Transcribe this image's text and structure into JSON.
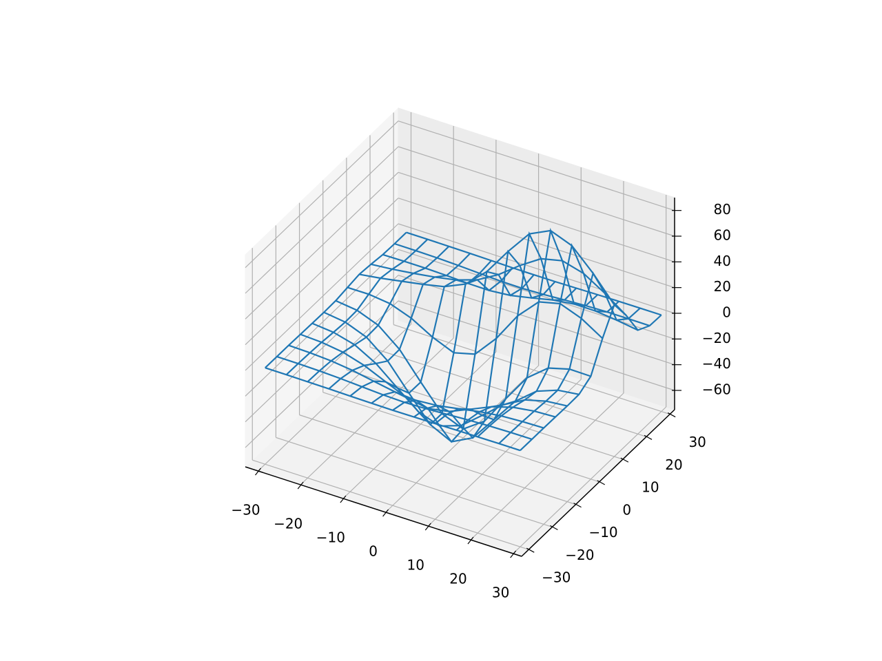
{
  "chart_data": {
    "type": "wireframe",
    "color": "#1f77b4",
    "x": [
      -30,
      -25,
      -20,
      -15,
      -10,
      -5,
      0,
      5,
      10,
      15,
      20,
      25,
      30
    ],
    "y": [
      -30,
      -25,
      -20,
      -15,
      -10,
      -5,
      0,
      5,
      10,
      15,
      20,
      25,
      30
    ],
    "z": [
      [
        -0.01,
        -0.04,
        -0.12,
        -0.29,
        -0.54,
        -0.78,
        -0.88,
        -0.78,
        -0.54,
        -0.29,
        -0.12,
        -0.04,
        -0.01
      ],
      [
        -0.04,
        -0.15,
        -0.47,
        -1.13,
        -2.12,
        -3.08,
        -3.49,
        -3.08,
        -2.12,
        -1.13,
        -0.47,
        -0.15,
        -0.04
      ],
      [
        -0.12,
        -0.47,
        -1.46,
        -3.5,
        -6.53,
        -9.5,
        -10.77,
        -9.5,
        -6.53,
        -3.5,
        -1.46,
        -0.47,
        -0.12
      ],
      [
        -0.29,
        -1.13,
        -3.5,
        -8.39,
        -15.67,
        -22.8,
        -25.84,
        -22.8,
        -15.67,
        -8.39,
        -3.5,
        -1.13,
        -0.29
      ],
      [
        -0.53,
        -2.11,
        -6.53,
        -15.66,
        -29.26,
        -42.57,
        -48.23,
        -42.56,
        -29.23,
        -15.64,
        -6.5,
        -2.1,
        -0.52
      ],
      [
        -0.75,
        -3.0,
        -9.34,
        -22.51,
        -42.11,
        -61.27,
        -69.29,
        -60.87,
        -41.41,
        -21.69,
        -8.56,
        -2.37,
        -0.3
      ],
      [
        -0.47,
        -2.55,
        -8.83,
        -22.26,
        -42.36,
        -61.52,
        -68.09,
        -56.65,
        -33.9,
        -12.26,
        0.72,
        5.22,
        5.02
      ],
      [
        1.06,
        1.15,
        -0.79,
        -6.75,
        -16.13,
        -22.95,
        -18.71,
        -1.09,
        21.76,
        38.09,
        42.02,
        35.95,
        25.68
      ],
      [
        2.49,
        4.85,
        7.83,
        10.79,
        14.35,
        21.76,
        36.69,
        57.81,
        76.83,
        84.73,
        78.42,
        62.23,
        43.08
      ],
      [
        1.55,
        3.1,
        5.21,
        7.66,
        10.79,
        16.23,
        25.68,
        38.09,
        48.68,
        52.5,
        48.02,
        37.9,
        26.17
      ],
      [
        0.29,
        0.47,
        0.48,
        0.08,
        -0.63,
        -0.79,
        0.72,
        4.08,
        7.83,
        10.08,
        10.03,
        8.24,
        5.78
      ],
      [
        -0.01,
        -0.07,
        -0.31,
        -0.84,
        -1.64,
        -2.37,
        -2.55,
        -1.97,
        -0.94,
        -0.02,
        0.47,
        0.56,
        0.44
      ],
      [
        -0.01,
        -0.04,
        -0.12,
        -0.28,
        -0.52,
        -0.76,
        -0.85,
        -0.75,
        -0.5,
        -0.26,
        -0.09,
        -0.02,
        0.01
      ]
    ],
    "xlim": [
      -33,
      32
    ],
    "ylim": [
      -33,
      32
    ],
    "zlim": [
      -75,
      90
    ],
    "xticks": [
      {
        "value": -30,
        "label": "−30"
      },
      {
        "value": -20,
        "label": "−20"
      },
      {
        "value": -10,
        "label": "−10"
      },
      0,
      10,
      20,
      30
    ],
    "yticks": [
      {
        "value": -30,
        "label": "−30"
      },
      {
        "value": -20,
        "label": "−20"
      },
      {
        "value": -10,
        "label": "−10"
      },
      0,
      10,
      20,
      30
    ],
    "zticks": [
      {
        "value": -60,
        "label": "−60"
      },
      {
        "value": -40,
        "label": "−40"
      },
      {
        "value": -20,
        "label": "−20"
      },
      0,
      20,
      40,
      60,
      80
    ],
    "grid": true
  }
}
